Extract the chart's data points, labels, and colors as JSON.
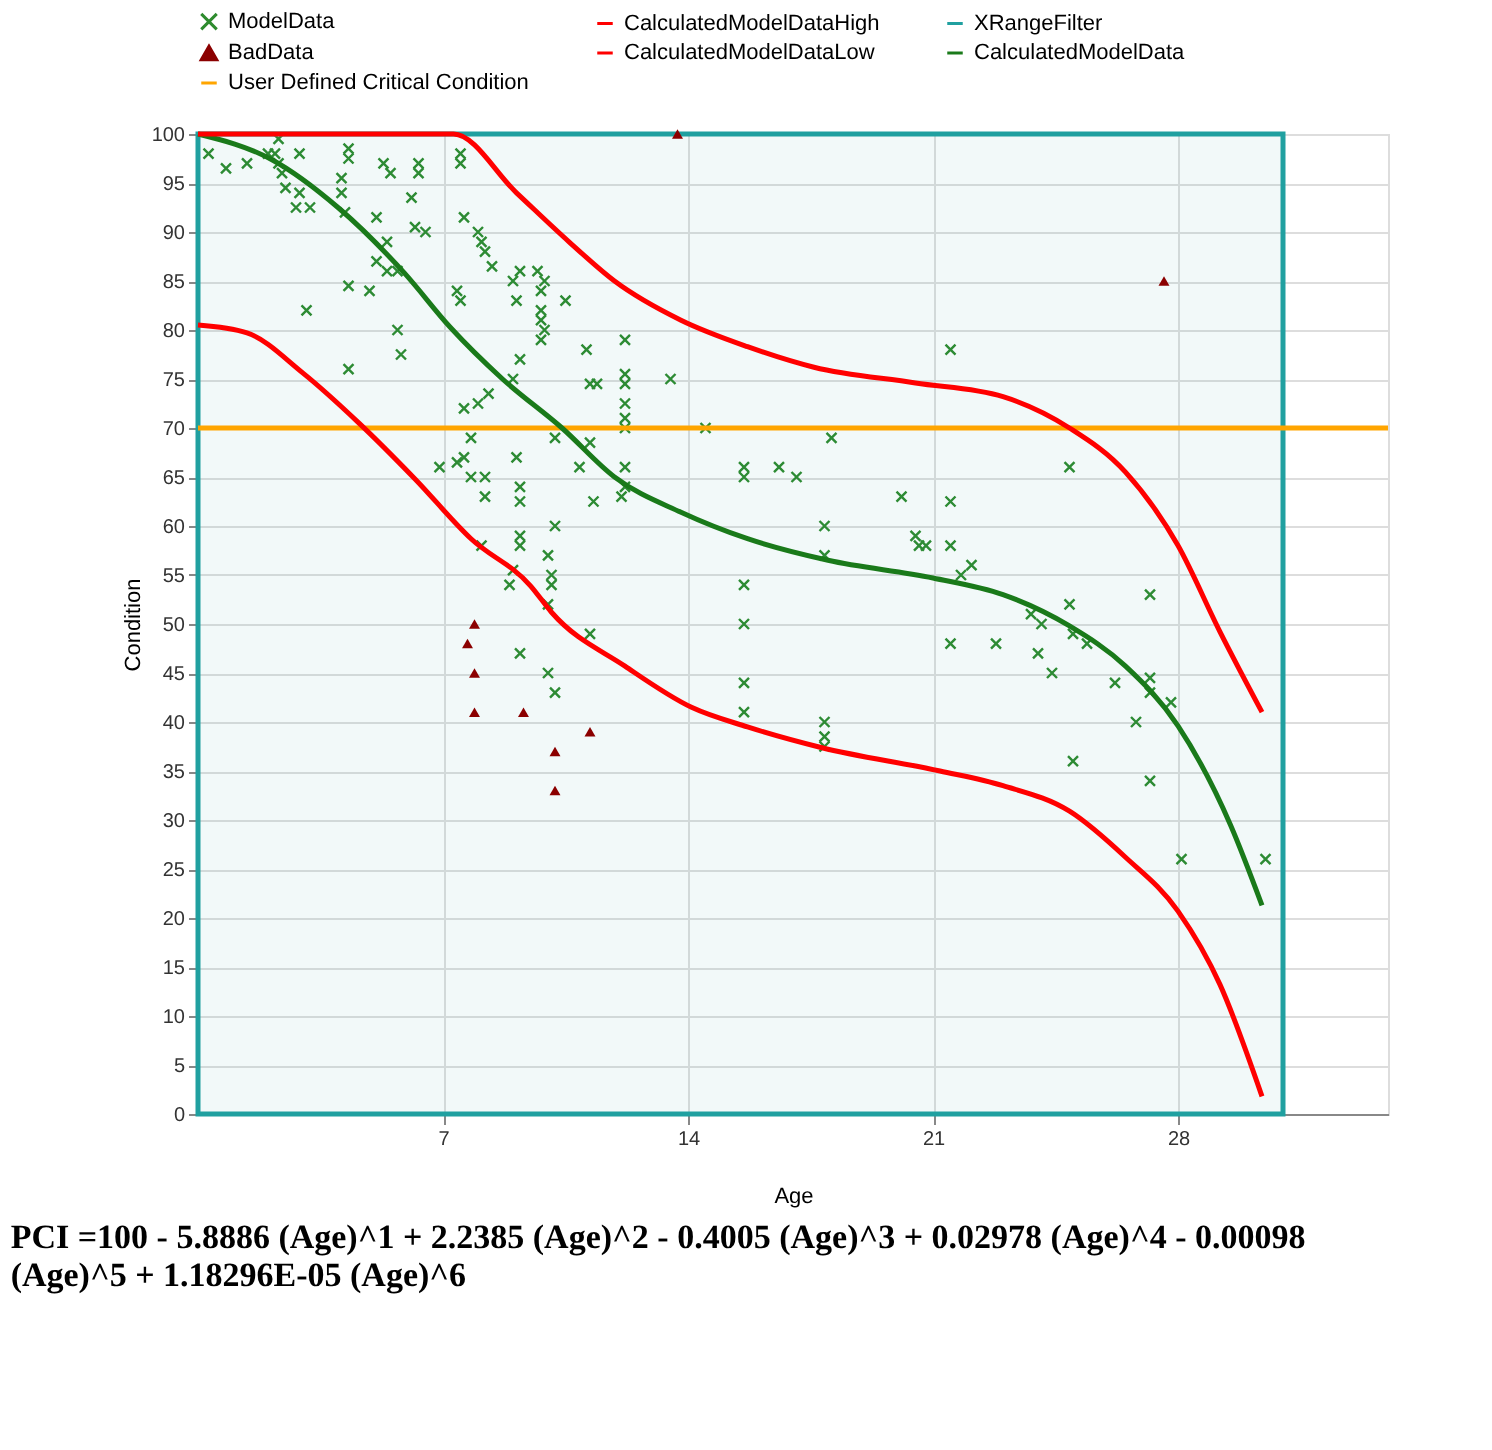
{
  "chart_data": {
    "type": "scatter",
    "xlabel": "Age",
    "ylabel": "Condition",
    "xlim": [
      0,
      34
    ],
    "xticks": [
      7,
      14,
      21,
      28
    ],
    "ylim": [
      0,
      100
    ],
    "yticks": [
      0,
      5,
      10,
      15,
      20,
      25,
      30,
      35,
      40,
      45,
      50,
      55,
      60,
      65,
      70,
      75,
      80,
      85,
      90,
      95,
      100
    ],
    "grid": true,
    "legend": "top",
    "series": [
      {
        "name": "ModelData",
        "marker": "cross",
        "color": "#2e8b2e",
        "x": [
          0.3,
          0.8,
          1.4,
          2.0,
          2.2,
          2.3,
          2.4,
          2.3,
          2.9,
          2.5,
          2.8,
          2.9,
          3.2,
          3.1,
          4.1,
          4.1,
          4.2,
          4.3,
          4.3,
          4.3,
          4.3,
          4.9,
          5.3,
          5.5,
          5.4,
          5.1,
          5.4,
          5.1,
          5.7,
          5.7,
          5.8,
          6.3,
          6.3,
          6.1,
          6.2,
          6.5,
          6.9,
          7.5,
          7.5,
          7.6,
          8.0,
          8.1,
          8.2,
          7.6,
          7.5,
          7.4,
          8.0,
          7.8,
          7.6,
          7.8,
          8.2,
          8.2,
          8.1,
          7.4,
          8.4,
          8.3,
          9.0,
          9.2,
          9.2,
          9.0,
          9.1,
          9.1,
          9.2,
          9.2,
          9.2,
          9.2,
          9.0,
          8.9,
          9.2,
          9.7,
          9.9,
          9.8,
          9.8,
          9.8,
          9.9,
          9.8,
          10.0,
          10.0,
          10.2,
          10.2,
          10.2,
          10.1,
          10.1,
          10.0,
          10.5,
          10.9,
          11.2,
          11.4,
          11.2,
          11.3,
          11.2,
          11.1,
          12.2,
          12.2,
          12.2,
          12.2,
          12.2,
          12.2,
          12.2,
          12.2,
          12.1,
          13.5,
          14.5,
          15.6,
          15.6,
          15.6,
          15.6,
          15.6,
          15.6,
          16.6,
          17.1,
          18.1,
          17.9,
          17.9,
          17.9,
          17.9,
          17.9,
          20.1,
          20.5,
          20.6,
          20.8,
          21.5,
          21.5,
          21.5,
          21.5,
          21.8,
          22.1,
          22.8,
          23.8,
          24.1,
          24.0,
          24.4,
          24.9,
          24.9,
          25.0,
          25.0,
          25.4,
          26.2,
          26.8,
          27.2,
          27.2,
          27.2,
          27.2,
          27.8,
          28.1,
          30.5
        ],
        "values": [
          98,
          96.5,
          97,
          98,
          98,
          97,
          96,
          99.5,
          98,
          94.5,
          92.5,
          94,
          92.5,
          82,
          95.5,
          94,
          92,
          98.5,
          97.5,
          76,
          84.5,
          84,
          97,
          96,
          89,
          87,
          86,
          91.5,
          86,
          80,
          77.5,
          97,
          96,
          93.5,
          90.5,
          90,
          66,
          98,
          97,
          91.5,
          90,
          89,
          88,
          72,
          83,
          84,
          72.5,
          69,
          67,
          65,
          65,
          63,
          58,
          66.5,
          86.5,
          73.5,
          75,
          77,
          86,
          85,
          83,
          67,
          64,
          62.5,
          59,
          58,
          55.5,
          54,
          47,
          86,
          85,
          84,
          82,
          81,
          80,
          79,
          52,
          45,
          43,
          69,
          60,
          55,
          54,
          57,
          83,
          66,
          74.5,
          74.5,
          68.5,
          62.5,
          49,
          78,
          79,
          75.5,
          74.5,
          72.5,
          71,
          70,
          66,
          64,
          63,
          75,
          70,
          66,
          65,
          54,
          50,
          44,
          41,
          66,
          65,
          69,
          60,
          57,
          40,
          38.5,
          37.5,
          63,
          59,
          58,
          58,
          78,
          62.5,
          58,
          48,
          55,
          56,
          48,
          51,
          50,
          47,
          45,
          52,
          66,
          49,
          36,
          48,
          44,
          40,
          53,
          44.5,
          43,
          34,
          42,
          26,
          26
        ]
      },
      {
        "name": "BadData",
        "type": "scatter",
        "marker": "triangle",
        "color": "#8b0000",
        "x": [
          7.9,
          7.7,
          7.9,
          7.9,
          9.3,
          11.2,
          10.2,
          10.2,
          13.7,
          27.6
        ],
        "values": [
          50,
          48,
          45,
          41,
          41,
          39,
          37,
          33,
          100,
          85
        ]
      },
      {
        "name": "CalculatedModelData",
        "type": "line",
        "color": "#1a7a1a",
        "x": [
          0,
          2.1,
          4.0,
          5.9,
          7.2,
          8.7,
          10.4,
          11.9,
          13.8,
          15.7,
          18.0,
          21.0,
          23.0,
          24.9,
          26.5,
          28.0,
          29.5,
          30.4
        ],
        "values": [
          100,
          97.4,
          92.5,
          85.8,
          80.3,
          75,
          70,
          65,
          61.4,
          58.7,
          56.5,
          54.7,
          53,
          49.8,
          45.7,
          39.6,
          29.5,
          21.3
        ]
      },
      {
        "name": "CalculatedModelDataHigh",
        "type": "line",
        "color": "#ff0000",
        "x": [
          0,
          7.3,
          9.1,
          10.6,
          11.9,
          13.8,
          15.7,
          17.6,
          20.5,
          23.0,
          24.9,
          26.5,
          28.0,
          29.2,
          30.4
        ],
        "values": [
          100,
          100,
          94,
          89,
          85,
          81,
          78.3,
          76.2,
          74.6,
          73.2,
          70,
          65.5,
          58,
          49.2,
          41
        ]
      },
      {
        "name": "CalculatedModelDataLow",
        "type": "line",
        "color": "#ff0000",
        "x": [
          0,
          1.4,
          3.0,
          4.6,
          6.2,
          7.8,
          9.5,
          10.1,
          12.2,
          14.1,
          15.7,
          17.8,
          21.2,
          23.0,
          24.9,
          26.5,
          28.0,
          29.2,
          30.4
        ],
        "values": [
          80.5,
          79.7,
          75.6,
          70.5,
          64.8,
          58.7,
          53.9,
          51.2,
          45.7,
          41.5,
          39.5,
          37.4,
          35,
          33.5,
          30.9,
          26.2,
          20.7,
          13.2,
          1.8
        ]
      }
    ],
    "ref_lines": [
      {
        "axis": "y",
        "value": 70,
        "label": "User Defined Critical Condition",
        "color": "#ffa500"
      }
    ],
    "bands": [
      {
        "axis": "x",
        "from": 0,
        "to": 31,
        "label": "XRangeFilter",
        "color": "#20a0a0"
      }
    ],
    "annotations": [
      "PCI =100 - 5.8886 (Age)^1 + 2.2385 (Age)^2 - 0.4005 (Age)^3 + 0.02978 (Age)^4 - 0.00098 (Age)^5 + 1.18296E-05 (Age)^6"
    ]
  }
}
